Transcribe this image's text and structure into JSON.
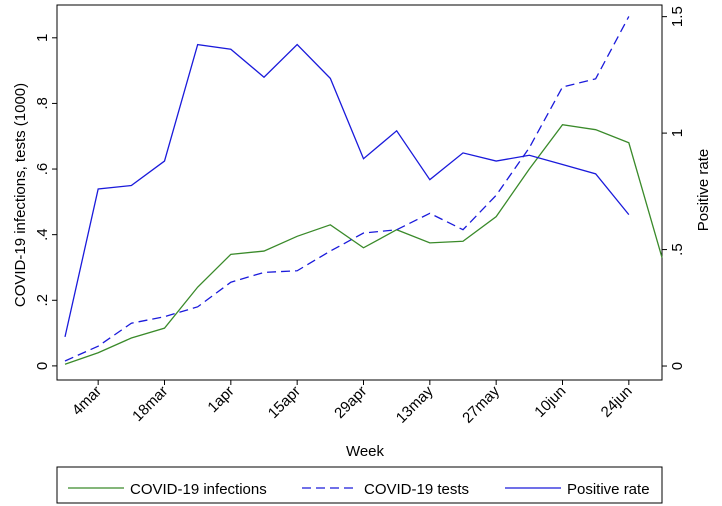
{
  "chart_data": {
    "type": "line",
    "x_label": "Week",
    "y_label": "COVID-19 infections, tests (1000)",
    "y2_label": "Positive rate",
    "categories": [
      null,
      "4mar",
      null,
      "18mar",
      null,
      "1apr",
      null,
      "15apr",
      null,
      "29apr",
      null,
      "13may",
      null,
      "27may",
      null,
      "10jun",
      null,
      "24jun",
      null
    ],
    "ylim": [
      -0.043,
      1.1
    ],
    "yticks": [
      {
        "value": 0,
        "label": "0"
      },
      {
        "value": 0.2,
        "label": ".2"
      },
      {
        "value": 0.4,
        "label": ".4"
      },
      {
        "value": 0.6,
        "label": ".6"
      },
      {
        "value": 0.8,
        "label": ".8"
      },
      {
        "value": 1,
        "label": "1"
      }
    ],
    "y2lim": [
      -0.06,
      1.55
    ],
    "y2ticks": [
      {
        "value": 0,
        "label": "0"
      },
      {
        "value": 0.5,
        "label": ".5"
      },
      {
        "value": 1,
        "label": "1"
      },
      {
        "value": 1.5,
        "label": "1.5"
      }
    ],
    "series": [
      {
        "name": "COVID-19 infections",
        "color": "#3a8a2a",
        "dash": "solid",
        "values": [
          0.005,
          0.04,
          0.085,
          0.115,
          0.24,
          0.34,
          0.35,
          0.395,
          0.43,
          0.36,
          0.415,
          0.375,
          0.38,
          0.455,
          0.6,
          0.735,
          0.72,
          0.68,
          0.33
        ]
      },
      {
        "name": "COVID-19 tests",
        "color": "#1a1adb",
        "dash": "dashed",
        "values": [
          0.015,
          0.06,
          0.13,
          0.15,
          0.18,
          0.255,
          0.285,
          0.29,
          0.35,
          0.405,
          0.415,
          0.465,
          0.415,
          0.52,
          0.665,
          0.85,
          0.875,
          1.065,
          null
        ]
      },
      {
        "name": "Positive rate",
        "color": "#1a1adb",
        "dash": "solid",
        "axis": "y2",
        "values": [
          0.125,
          0.76,
          0.775,
          0.88,
          1.38,
          1.36,
          1.24,
          1.38,
          1.235,
          0.89,
          1.01,
          0.8,
          0.915,
          0.88,
          0.905,
          0.865,
          0.825,
          0.65,
          null
        ]
      }
    ]
  }
}
